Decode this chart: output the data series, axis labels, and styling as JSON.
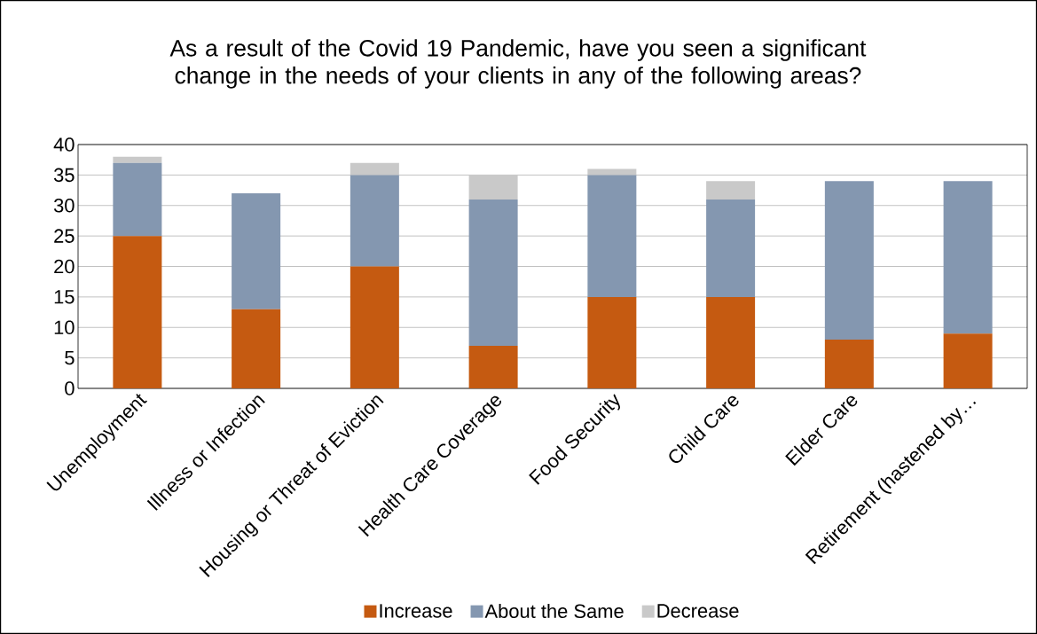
{
  "chart_data": {
    "type": "bar",
    "title": "As a result of the Covid 19 Pandemic, have you seen a significant change in the needs of your clients in any of the following areas?",
    "categories": [
      "Unemployment",
      "Illness or Infection",
      "Housing or Threat of Eviction",
      "Health Care Coverage",
      "Food Security",
      "Child Care",
      "Elder Care",
      "Retirement (hastened by…"
    ],
    "stacked": true,
    "series": [
      {
        "name": "Increase",
        "color": "#c55a11",
        "values": [
          25,
          13,
          20,
          7,
          15,
          15,
          8,
          9
        ]
      },
      {
        "name": "About the Same",
        "color": "#8497b0",
        "values": [
          12,
          19,
          15,
          24,
          20,
          16,
          26,
          25
        ]
      },
      {
        "name": "Decrease",
        "color": "#c9c9c9",
        "values": [
          1,
          0,
          2,
          4,
          1,
          3,
          0,
          0
        ]
      }
    ],
    "ylim": [
      0,
      40
    ],
    "yticks": [
      0,
      5,
      10,
      15,
      20,
      25,
      30,
      35,
      40
    ],
    "grid": "y",
    "legend": "bottom"
  }
}
